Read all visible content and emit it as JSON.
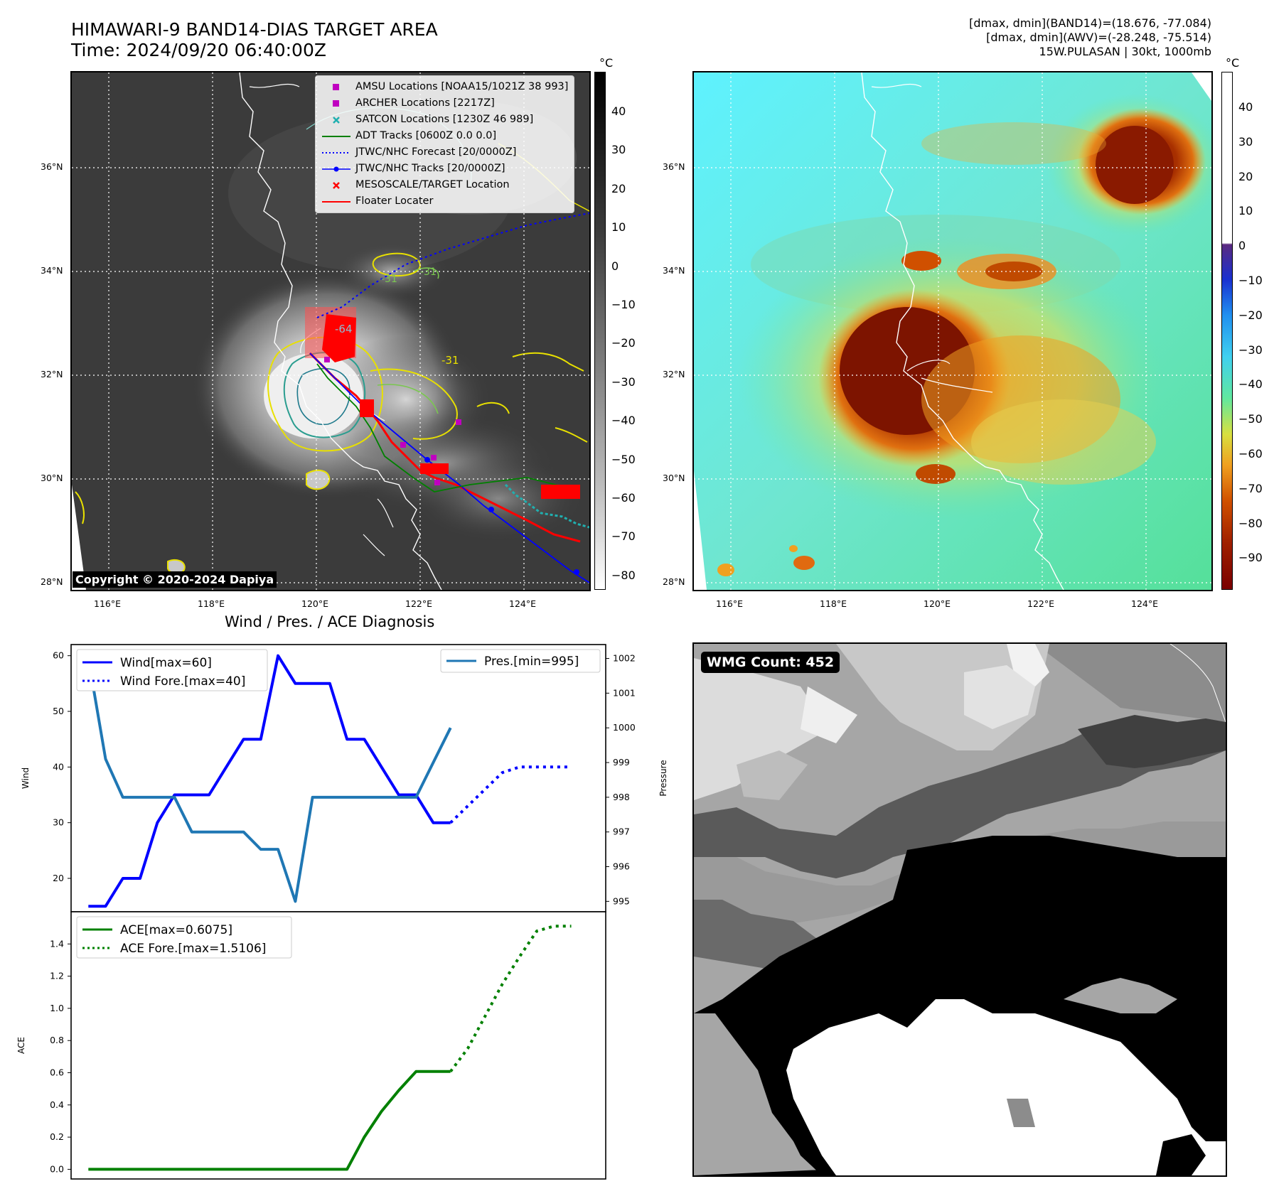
{
  "header": {
    "title_line1": "HIMAWARI-9 BAND14-DIAS TARGET AREA",
    "title_line2": "Time: 2024/09/20 06:40:00Z",
    "info_line1": "[dmax, dmin](BAND14)=(18.676, -77.084)",
    "info_line2": "[dmax, dmin](AWV)=(-28.248, -75.514)",
    "info_line3": "15W.PULASAN | 30kt, 1000mb"
  },
  "map": {
    "lat_labels": [
      "36°N",
      "34°N",
      "32°N",
      "30°N",
      "28°N"
    ],
    "lon_labels": [
      "116°E",
      "118°E",
      "120°E",
      "122°E",
      "124°E"
    ],
    "contour_labels": [
      "-64",
      "-31",
      "-31",
      "-31"
    ],
    "copyright": "Copyright © 2020-2024 Dapiya"
  },
  "legend": {
    "items": [
      {
        "label": "AMSU Locations [NOAA15/1021Z 38 993]",
        "color": "#c000c0"
      },
      {
        "label": "ARCHER Locations [2217Z]",
        "color": "#c000c0"
      },
      {
        "label": "SATCON Locations [1230Z 46 989]",
        "color": "#20b0b0"
      },
      {
        "label": "ADT Tracks [0600Z 0.0 0.0]",
        "color": "#008000"
      },
      {
        "label": "JTWC/NHC Forecast [20/0000Z]",
        "color": "#0000ff"
      },
      {
        "label": "JTWC/NHC Tracks [20/0000Z]",
        "color": "#0000ff"
      },
      {
        "label": "MESOSCALE/TARGET Location",
        "color": "#ff0000"
      },
      {
        "label": "Floater Locater",
        "color": "#ff0000"
      }
    ]
  },
  "colorbar_left": {
    "unit": "°C",
    "ticks": [
      "40",
      "30",
      "20",
      "10",
      "0",
      "−10",
      "−20",
      "−30",
      "−40",
      "−50",
      "−60",
      "−70",
      "−80"
    ]
  },
  "colorbar_right": {
    "unit": "°C",
    "ticks": [
      "40",
      "30",
      "20",
      "10",
      "0",
      "−10",
      "−20",
      "−30",
      "−40",
      "−50",
      "−60",
      "−70",
      "−80",
      "−90"
    ]
  },
  "wmg": {
    "badge": "WMG Count: 452"
  },
  "chart_data": [
    {
      "type": "line",
      "title": "Wind / Pres. / ACE Diagnosis",
      "ylabel": "Wind",
      "ylabel_right": "Pressure",
      "ylim": [
        14,
        62
      ],
      "ylim_right": [
        994.7,
        1002.4
      ],
      "yticks": [
        20,
        30,
        40,
        50,
        60
      ],
      "yticks_right": [
        995,
        996,
        997,
        998,
        999,
        1000,
        1001,
        1002
      ],
      "xlim": [
        -1,
        30
      ],
      "series": [
        {
          "name": "Wind[max=60]",
          "color": "#0000ff",
          "style": "solid",
          "x": [
            0,
            1,
            2,
            3,
            4,
            5,
            6,
            7,
            8,
            9,
            10,
            11,
            12,
            13,
            14,
            15,
            16,
            17,
            18,
            19,
            20,
            21
          ],
          "values": [
            15,
            15,
            20,
            20,
            30,
            35,
            35,
            35,
            40,
            45,
            45,
            60,
            55,
            55,
            55,
            45,
            45,
            40,
            35,
            35,
            30,
            30
          ]
        },
        {
          "name": "Wind Fore.[max=40]",
          "color": "#0000ff",
          "style": "dotted",
          "x": [
            21,
            22,
            23,
            24,
            25,
            26,
            27,
            28
          ],
          "values": [
            30,
            33,
            36,
            39,
            40,
            40,
            40,
            40
          ]
        },
        {
          "name": "Pres.[min=995]",
          "color": "#1f77b4",
          "style": "solid",
          "axis": "right",
          "x": [
            0,
            1,
            2,
            3,
            4,
            5,
            6,
            7,
            8,
            9,
            10,
            11,
            12,
            13,
            14,
            15,
            16,
            17,
            18,
            19,
            20,
            21
          ],
          "values": [
            1002,
            999.1,
            998,
            998,
            998,
            998,
            997,
            997,
            997,
            997,
            996.5,
            996.5,
            995,
            998,
            998,
            998,
            998,
            998,
            998,
            998,
            999,
            1000
          ]
        }
      ]
    },
    {
      "type": "line",
      "ylabel": "ACE",
      "ylim": [
        -0.06,
        1.6
      ],
      "yticks": [
        0.0,
        0.2,
        0.4,
        0.6,
        0.8,
        1.0,
        1.2,
        1.4
      ],
      "xlim": [
        -1,
        30
      ],
      "series": [
        {
          "name": "ACE[max=0.6075]",
          "color": "#008000",
          "style": "solid",
          "x": [
            0,
            1,
            2,
            3,
            4,
            5,
            6,
            7,
            8,
            9,
            10,
            11,
            12,
            13,
            14,
            15,
            16,
            17,
            18,
            19,
            20,
            21
          ],
          "values": [
            0,
            0,
            0,
            0,
            0,
            0,
            0,
            0,
            0,
            0,
            0,
            0,
            0,
            0,
            0,
            0,
            0.2,
            0.36,
            0.49,
            0.6075,
            0.6075,
            0.6075
          ]
        },
        {
          "name": "ACE Fore.[max=1.5106]",
          "color": "#008000",
          "style": "dotted",
          "x": [
            21,
            22,
            23,
            24,
            25,
            26,
            27,
            28
          ],
          "values": [
            0.6075,
            0.75,
            0.95,
            1.15,
            1.32,
            1.48,
            1.5106,
            1.5106
          ]
        }
      ]
    }
  ]
}
